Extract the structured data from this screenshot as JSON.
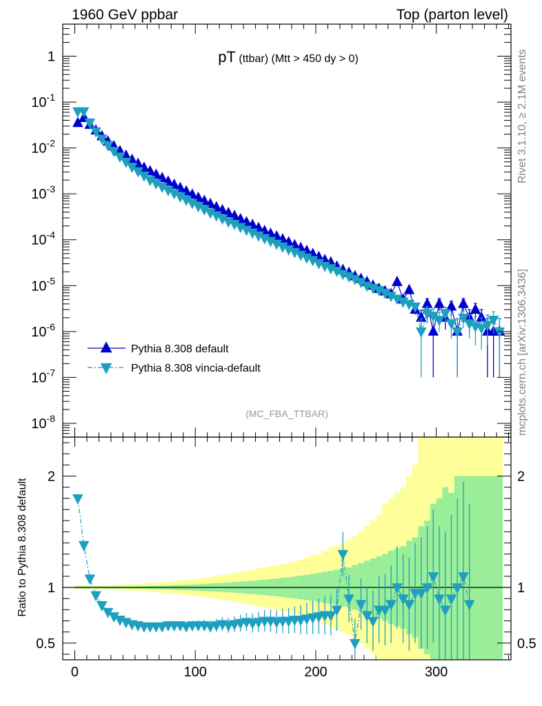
{
  "header": {
    "left": "1960 GeV ppbar",
    "right": "Top (parton level)"
  },
  "side_labels": {
    "rivet": "Rivet 3.1.10, ≥ 2.1M events",
    "mcplots": "mcplots.cern.ch [arXiv:1306.3436]"
  },
  "plot_title": {
    "main": "pT",
    "sub": " (ttbar) (Mtt > 450 dy > 0)"
  },
  "analysis_tag": "(MC_FBA_TTBAR)",
  "colors": {
    "default": "#0000cc",
    "vincia": "#1f9fbf",
    "band_inner": "#99ee99",
    "band_outer": "#ffff99"
  },
  "chart_data": [
    {
      "type": "scatter",
      "panel": "main",
      "yscale": "log",
      "xlim": [
        -10,
        362
      ],
      "ylim": [
        5e-09,
        5
      ],
      "ytick_labels": [
        "1",
        "10^-1",
        "10^-2",
        "10^-3",
        "10^-4",
        "10^-5",
        "10^-6",
        "10^-7",
        "10^-8"
      ],
      "legend_position": "bottom-left",
      "series": [
        {
          "name": "Pythia 8.308 default",
          "marker": "triangle-up",
          "line": "solid",
          "x": [
            2.5,
            7.5,
            12.5,
            17.5,
            22.5,
            27.5,
            32.5,
            37.5,
            42.5,
            47.5,
            52.5,
            57.5,
            62.5,
            67.5,
            72.5,
            77.5,
            82.5,
            87.5,
            92.5,
            97.5,
            102.5,
            107.5,
            112.5,
            117.5,
            122.5,
            127.5,
            132.5,
            137.5,
            142.5,
            147.5,
            152.5,
            157.5,
            162.5,
            167.5,
            172.5,
            177.5,
            182.5,
            187.5,
            192.5,
            197.5,
            202.5,
            207.5,
            212.5,
            217.5,
            222.5,
            227.5,
            232.5,
            237.5,
            242.5,
            247.5,
            252.5,
            257.5,
            262.5,
            267.5,
            272.5,
            277.5,
            282.5,
            287.5,
            292.5,
            297.5,
            302.5,
            307.5,
            312.5,
            317.5,
            322.5,
            327.5,
            332.5,
            337.5,
            342.5,
            347.5,
            352.5
          ],
          "y": [
            0.035,
            0.045,
            0.032,
            0.024,
            0.018,
            0.0138,
            0.0108,
            0.0085,
            0.0068,
            0.0055,
            0.0045,
            0.0037,
            0.0031,
            0.0026,
            0.0022,
            0.00185,
            0.00158,
            0.00134,
            0.00113,
            0.00096,
            0.00082,
            0.0007,
            0.0006,
            0.00051,
            0.00044,
            0.00038,
            0.00033,
            0.00028,
            0.00024,
            0.00021,
            0.00018,
            0.000155,
            0.000135,
            0.000118,
            0.000102,
            8.8e-05,
            7.6e-05,
            6.6e-05,
            5.7e-05,
            4.9e-05,
            4.2e-05,
            3.6e-05,
            3.2e-05,
            2.6e-05,
            2.2e-05,
            1.9e-05,
            1.6e-05,
            1.4e-05,
            1.2e-05,
            1e-05,
            8.5e-06,
            7.5e-06,
            6.5e-06,
            1.2e-05,
            5e-06,
            8e-06,
            3e-06,
            2e-06,
            4e-06,
            1e-06,
            4e-06,
            2e-06,
            3.5e-06,
            1e-06,
            4e-06,
            2e-06,
            3e-06,
            2e-06,
            1e-06,
            1e-06,
            1e-06
          ],
          "yerr": [
            0.0008,
            0.001,
            0.0007,
            0.0005,
            0.0004,
            0.0003,
            0.00022,
            0.00018,
            0.00014,
            0.00011,
            9e-05,
            7.5e-05,
            6.5e-05,
            5.5e-05,
            4.5e-05,
            3.8e-05,
            3.3e-05,
            2.8e-05,
            2.4e-05,
            2e-05,
            1.7e-05,
            1.5e-05,
            1.3e-05,
            1.1e-05,
            1e-05,
            9e-06,
            8e-06,
            7e-06,
            6e-06,
            5.5e-06,
            5e-06,
            4.5e-06,
            4e-06,
            3.6e-06,
            3.3e-06,
            3e-06,
            2.7e-06,
            2.5e-06,
            2.3e-06,
            2.1e-06,
            1.9e-06,
            1.8e-06,
            1.7e-06,
            1.5e-06,
            1.4e-06,
            1.3e-06,
            1.2e-06,
            1.1e-06,
            1.05e-06,
            1e-06,
            9e-07,
            8.5e-07,
            8e-07,
            1.2e-06,
            7.5e-07,
            9e-07,
            6.5e-07,
            9e-07,
            1.2e-06,
            9e-07,
            1.2e-06,
            9e-07,
            1.1e-06,
            9e-07,
            1.2e-06,
            1e-06,
            1.1e-06,
            1e-06,
            9e-07,
            9e-07,
            9e-07
          ]
        },
        {
          "name": "Pythia 8.308 vincia-default",
          "marker": "triangle-down",
          "line": "dash-dot",
          "x": [
            2.5,
            7.5,
            12.5,
            17.5,
            22.5,
            27.5,
            32.5,
            37.5,
            42.5,
            47.5,
            52.5,
            57.5,
            62.5,
            67.5,
            72.5,
            77.5,
            82.5,
            87.5,
            92.5,
            97.5,
            102.5,
            107.5,
            112.5,
            117.5,
            122.5,
            127.5,
            132.5,
            137.5,
            142.5,
            147.5,
            152.5,
            157.5,
            162.5,
            167.5,
            172.5,
            177.5,
            182.5,
            187.5,
            192.5,
            197.5,
            202.5,
            207.5,
            212.5,
            217.5,
            222.5,
            227.5,
            232.5,
            237.5,
            242.5,
            247.5,
            252.5,
            257.5,
            262.5,
            267.5,
            272.5,
            277.5,
            282.5,
            287.5,
            292.5,
            297.5,
            302.5,
            307.5,
            312.5,
            317.5,
            322.5,
            327.5,
            332.5,
            337.5,
            342.5,
            347.5,
            352.5
          ],
          "y": [
            0.063,
            0.063,
            0.036,
            0.023,
            0.016,
            0.0116,
            0.0086,
            0.0065,
            0.005,
            0.0039,
            0.0031,
            0.0025,
            0.002,
            0.0017,
            0.00143,
            0.00121,
            0.00103,
            0.00088,
            0.00074,
            0.00063,
            0.00054,
            0.00046,
            0.00039,
            0.00034,
            0.00029,
            0.00025,
            0.00022,
            0.00019,
            0.000165,
            0.000143,
            0.000124,
            0.000108,
            9.4e-05,
            8.2e-05,
            7.1e-05,
            6.2e-05,
            5.4e-05,
            4.7e-05,
            4.1e-05,
            3.6e-05,
            3.1e-05,
            2.7e-05,
            2.4e-05,
            2.1e-05,
            1.8e-05,
            1.6e-05,
            1.4e-05,
            1.2e-05,
            1e-05,
            9e-06,
            8e-06,
            7e-06,
            6e-06,
            5.2e-06,
            4.5e-06,
            4e-06,
            3.5e-06,
            1e-06,
            2.5e-06,
            2.2e-06,
            1.8e-06,
            2.5e-06,
            1.5e-06,
            1e-06,
            2e-06,
            1.5e-06,
            1.3e-06,
            1.2e-06,
            1.4e-06,
            1.8e-06,
            1e-06
          ],
          "yerr": [
            0.0012,
            0.0012,
            0.0008,
            0.0005,
            0.0004,
            0.0003,
            0.00022,
            0.00018,
            0.00014,
            0.00011,
            9e-05,
            7.5e-05,
            6.5e-05,
            5.5e-05,
            4.5e-05,
            3.8e-05,
            3.3e-05,
            2.8e-05,
            2.4e-05,
            2e-05,
            1.7e-05,
            1.5e-05,
            1.3e-05,
            1.1e-05,
            1e-05,
            9e-06,
            8e-06,
            7e-06,
            6e-06,
            5.5e-06,
            5e-06,
            4.5e-06,
            4e-06,
            3.6e-06,
            3.3e-06,
            3e-06,
            2.7e-06,
            2.5e-06,
            2.3e-06,
            2.1e-06,
            1.9e-06,
            1.8e-06,
            1.7e-06,
            1.5e-06,
            1.4e-06,
            1.3e-06,
            1.2e-06,
            1.1e-06,
            1.05e-06,
            1e-06,
            9e-07,
            8.5e-07,
            8e-07,
            7.5e-07,
            7e-07,
            6.5e-07,
            6e-07,
            9e-07,
            1e-06,
            9e-07,
            8e-07,
            9e-07,
            8e-07,
            9e-07,
            8e-07,
            8e-07,
            8e-07,
            8e-07,
            9e-07,
            9e-07,
            9e-07
          ]
        }
      ]
    },
    {
      "type": "scatter",
      "panel": "ratio",
      "ylabel": "Ratio to Pythia 8.308 default",
      "xlim": [
        -10,
        362
      ],
      "ylim": [
        0.35,
        2.35
      ],
      "yticks": [
        0.5,
        1,
        2
      ],
      "ytick_labels": [
        "0.5",
        "1",
        "2"
      ],
      "xticks": [
        0,
        100,
        200,
        300
      ],
      "xtick_labels": [
        "0",
        "100",
        "200",
        "300"
      ],
      "reference_line": 1,
      "bands": {
        "x": [
          2.5,
          7.5,
          12.5,
          17.5,
          22.5,
          27.5,
          32.5,
          37.5,
          42.5,
          47.5,
          52.5,
          57.5,
          62.5,
          67.5,
          72.5,
          77.5,
          82.5,
          87.5,
          92.5,
          97.5,
          102.5,
          107.5,
          112.5,
          117.5,
          122.5,
          127.5,
          132.5,
          137.5,
          142.5,
          147.5,
          152.5,
          157.5,
          162.5,
          167.5,
          172.5,
          177.5,
          182.5,
          187.5,
          192.5,
          197.5,
          202.5,
          207.5,
          212.5,
          217.5,
          222.5,
          227.5,
          232.5,
          237.5,
          242.5,
          247.5,
          252.5,
          257.5,
          262.5,
          267.5,
          272.5,
          277.5,
          282.5,
          287.5,
          292.5,
          297.5,
          302.5,
          307.5,
          312.5,
          317.5,
          322.5,
          327.5,
          332.5,
          337.5,
          342.5,
          347.5,
          352.5
        ],
        "inner": [
          0.01,
          0.01,
          0.01,
          0.01,
          0.01,
          0.01,
          0.01,
          0.01,
          0.01,
          0.01,
          0.012,
          0.013,
          0.014,
          0.016,
          0.017,
          0.019,
          0.021,
          0.023,
          0.025,
          0.027,
          0.029,
          0.032,
          0.035,
          0.038,
          0.041,
          0.044,
          0.048,
          0.052,
          0.056,
          0.06,
          0.065,
          0.07,
          0.075,
          0.08,
          0.086,
          0.092,
          0.099,
          0.106,
          0.114,
          0.122,
          0.13,
          0.14,
          0.15,
          0.16,
          0.17,
          0.18,
          0.2,
          0.22,
          0.24,
          0.26,
          0.28,
          0.3,
          0.33,
          0.35,
          0.37,
          0.42,
          0.45,
          0.55,
          0.6,
          0.75,
          0.8,
          0.9,
          0.85,
          1.0,
          1.0,
          1.0,
          1.0,
          1.0,
          1.0,
          1.0,
          1.0
        ],
        "outer": [
          0.015,
          0.015,
          0.016,
          0.017,
          0.018,
          0.02,
          0.022,
          0.024,
          0.027,
          0.03,
          0.033,
          0.036,
          0.04,
          0.044,
          0.048,
          0.052,
          0.057,
          0.062,
          0.068,
          0.074,
          0.08,
          0.087,
          0.095,
          0.103,
          0.112,
          0.12,
          0.13,
          0.14,
          0.15,
          0.16,
          0.17,
          0.18,
          0.19,
          0.2,
          0.21,
          0.22,
          0.23,
          0.25,
          0.27,
          0.29,
          0.3,
          0.33,
          0.36,
          0.38,
          0.4,
          0.43,
          0.46,
          0.5,
          0.55,
          0.6,
          0.65,
          0.75,
          0.8,
          0.85,
          0.9,
          1.0,
          1.1,
          1.5,
          1.5,
          1.5,
          1.5,
          1.5,
          1.5,
          1.5,
          1.5,
          1.5,
          1.5,
          1.5,
          1.5,
          1.5,
          1.5
        ]
      },
      "series": [
        {
          "name": "Pythia 8.308 vincia-default",
          "marker": "triangle-down",
          "line": "dash-dot",
          "x": [
            2.5,
            7.5,
            12.5,
            17.5,
            22.5,
            27.5,
            32.5,
            37.5,
            42.5,
            47.5,
            52.5,
            57.5,
            62.5,
            67.5,
            72.5,
            77.5,
            82.5,
            87.5,
            92.5,
            97.5,
            102.5,
            107.5,
            112.5,
            117.5,
            122.5,
            127.5,
            132.5,
            137.5,
            142.5,
            147.5,
            152.5,
            157.5,
            162.5,
            167.5,
            172.5,
            177.5,
            182.5,
            187.5,
            192.5,
            197.5,
            202.5,
            207.5,
            212.5,
            217.5,
            222.5,
            227.5,
            232.5,
            237.5,
            242.5,
            247.5,
            252.5,
            257.5,
            262.5,
            267.5,
            272.5,
            277.5,
            282.5,
            287.5,
            292.5,
            297.5,
            302.5,
            307.5,
            312.5,
            317.5,
            322.5,
            327.5
          ],
          "y": [
            1.8,
            1.38,
            1.08,
            0.93,
            0.84,
            0.78,
            0.74,
            0.71,
            0.69,
            0.67,
            0.66,
            0.65,
            0.65,
            0.65,
            0.65,
            0.66,
            0.66,
            0.66,
            0.65,
            0.66,
            0.66,
            0.66,
            0.65,
            0.66,
            0.67,
            0.66,
            0.67,
            0.68,
            0.69,
            0.68,
            0.69,
            0.7,
            0.7,
            0.69,
            0.7,
            0.7,
            0.71,
            0.71,
            0.72,
            0.73,
            0.74,
            0.75,
            0.75,
            0.8,
            1.3,
            0.9,
            0.5,
            0.85,
            0.75,
            0.7,
            0.8,
            0.8,
            0.85,
            1.0,
            0.9,
            0.85,
            0.95,
            0.95,
            1.0,
            1.1,
            0.9,
            0.8,
            0.9,
            1.0,
            1.1,
            0.85
          ],
          "yerr": [
            0.02,
            0.02,
            0.015,
            0.015,
            0.015,
            0.015,
            0.016,
            0.017,
            0.018,
            0.019,
            0.02,
            0.022,
            0.024,
            0.026,
            0.028,
            0.03,
            0.033,
            0.036,
            0.039,
            0.042,
            0.046,
            0.05,
            0.054,
            0.058,
            0.062,
            0.066,
            0.07,
            0.075,
            0.08,
            0.085,
            0.09,
            0.095,
            0.1,
            0.105,
            0.11,
            0.115,
            0.12,
            0.13,
            0.14,
            0.15,
            0.16,
            0.17,
            0.18,
            0.19,
            0.2,
            0.21,
            0.22,
            0.23,
            0.25,
            0.27,
            0.3,
            0.32,
            0.35,
            0.37,
            0.4,
            0.42,
            0.45,
            0.5,
            0.55,
            0.6,
            0.65,
            0.7,
            0.75,
            0.8,
            0.85,
            0.9
          ]
        }
      ]
    }
  ]
}
